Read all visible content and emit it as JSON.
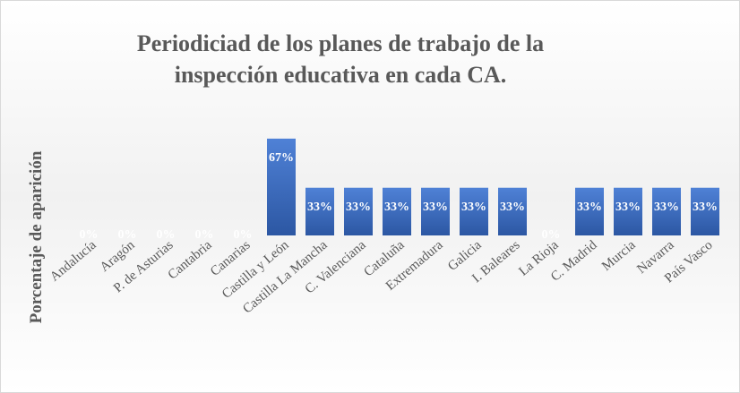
{
  "chart_data": {
    "type": "bar",
    "title": "Periodiciad de los planes de trabajo de la inspección educativa en cada CA.",
    "title_lines": [
      "Periodiciad de los planes de trabajo de la",
      "inspección educativa en cada CA."
    ],
    "ylabel": "Porcentaje de aparición",
    "categories": [
      "Andalucía",
      "Aragón",
      "P. de Asturias",
      "Cantabria",
      "Canarias",
      "Castilla y León",
      "Castilla La Mancha",
      "C. Valenciana",
      "Cataluña",
      "Extremadura",
      "Galicia",
      "I. Baleares",
      "La Rioja",
      "C. Madrid",
      "Murcia",
      "Navarra",
      "País Vasco"
    ],
    "values": [
      0,
      0,
      0,
      0,
      0,
      67,
      33,
      33,
      33,
      33,
      33,
      33,
      0,
      33,
      33,
      33,
      33
    ],
    "value_labels": [
      "0%",
      "0%",
      "0%",
      "0%",
      "0%",
      "67%",
      "33%",
      "33%",
      "33%",
      "33%",
      "33%",
      "33%",
      "0%",
      "33%",
      "33%",
      "33%",
      "33%"
    ],
    "color": "#4472c4",
    "ylim": [
      0,
      70
    ]
  }
}
